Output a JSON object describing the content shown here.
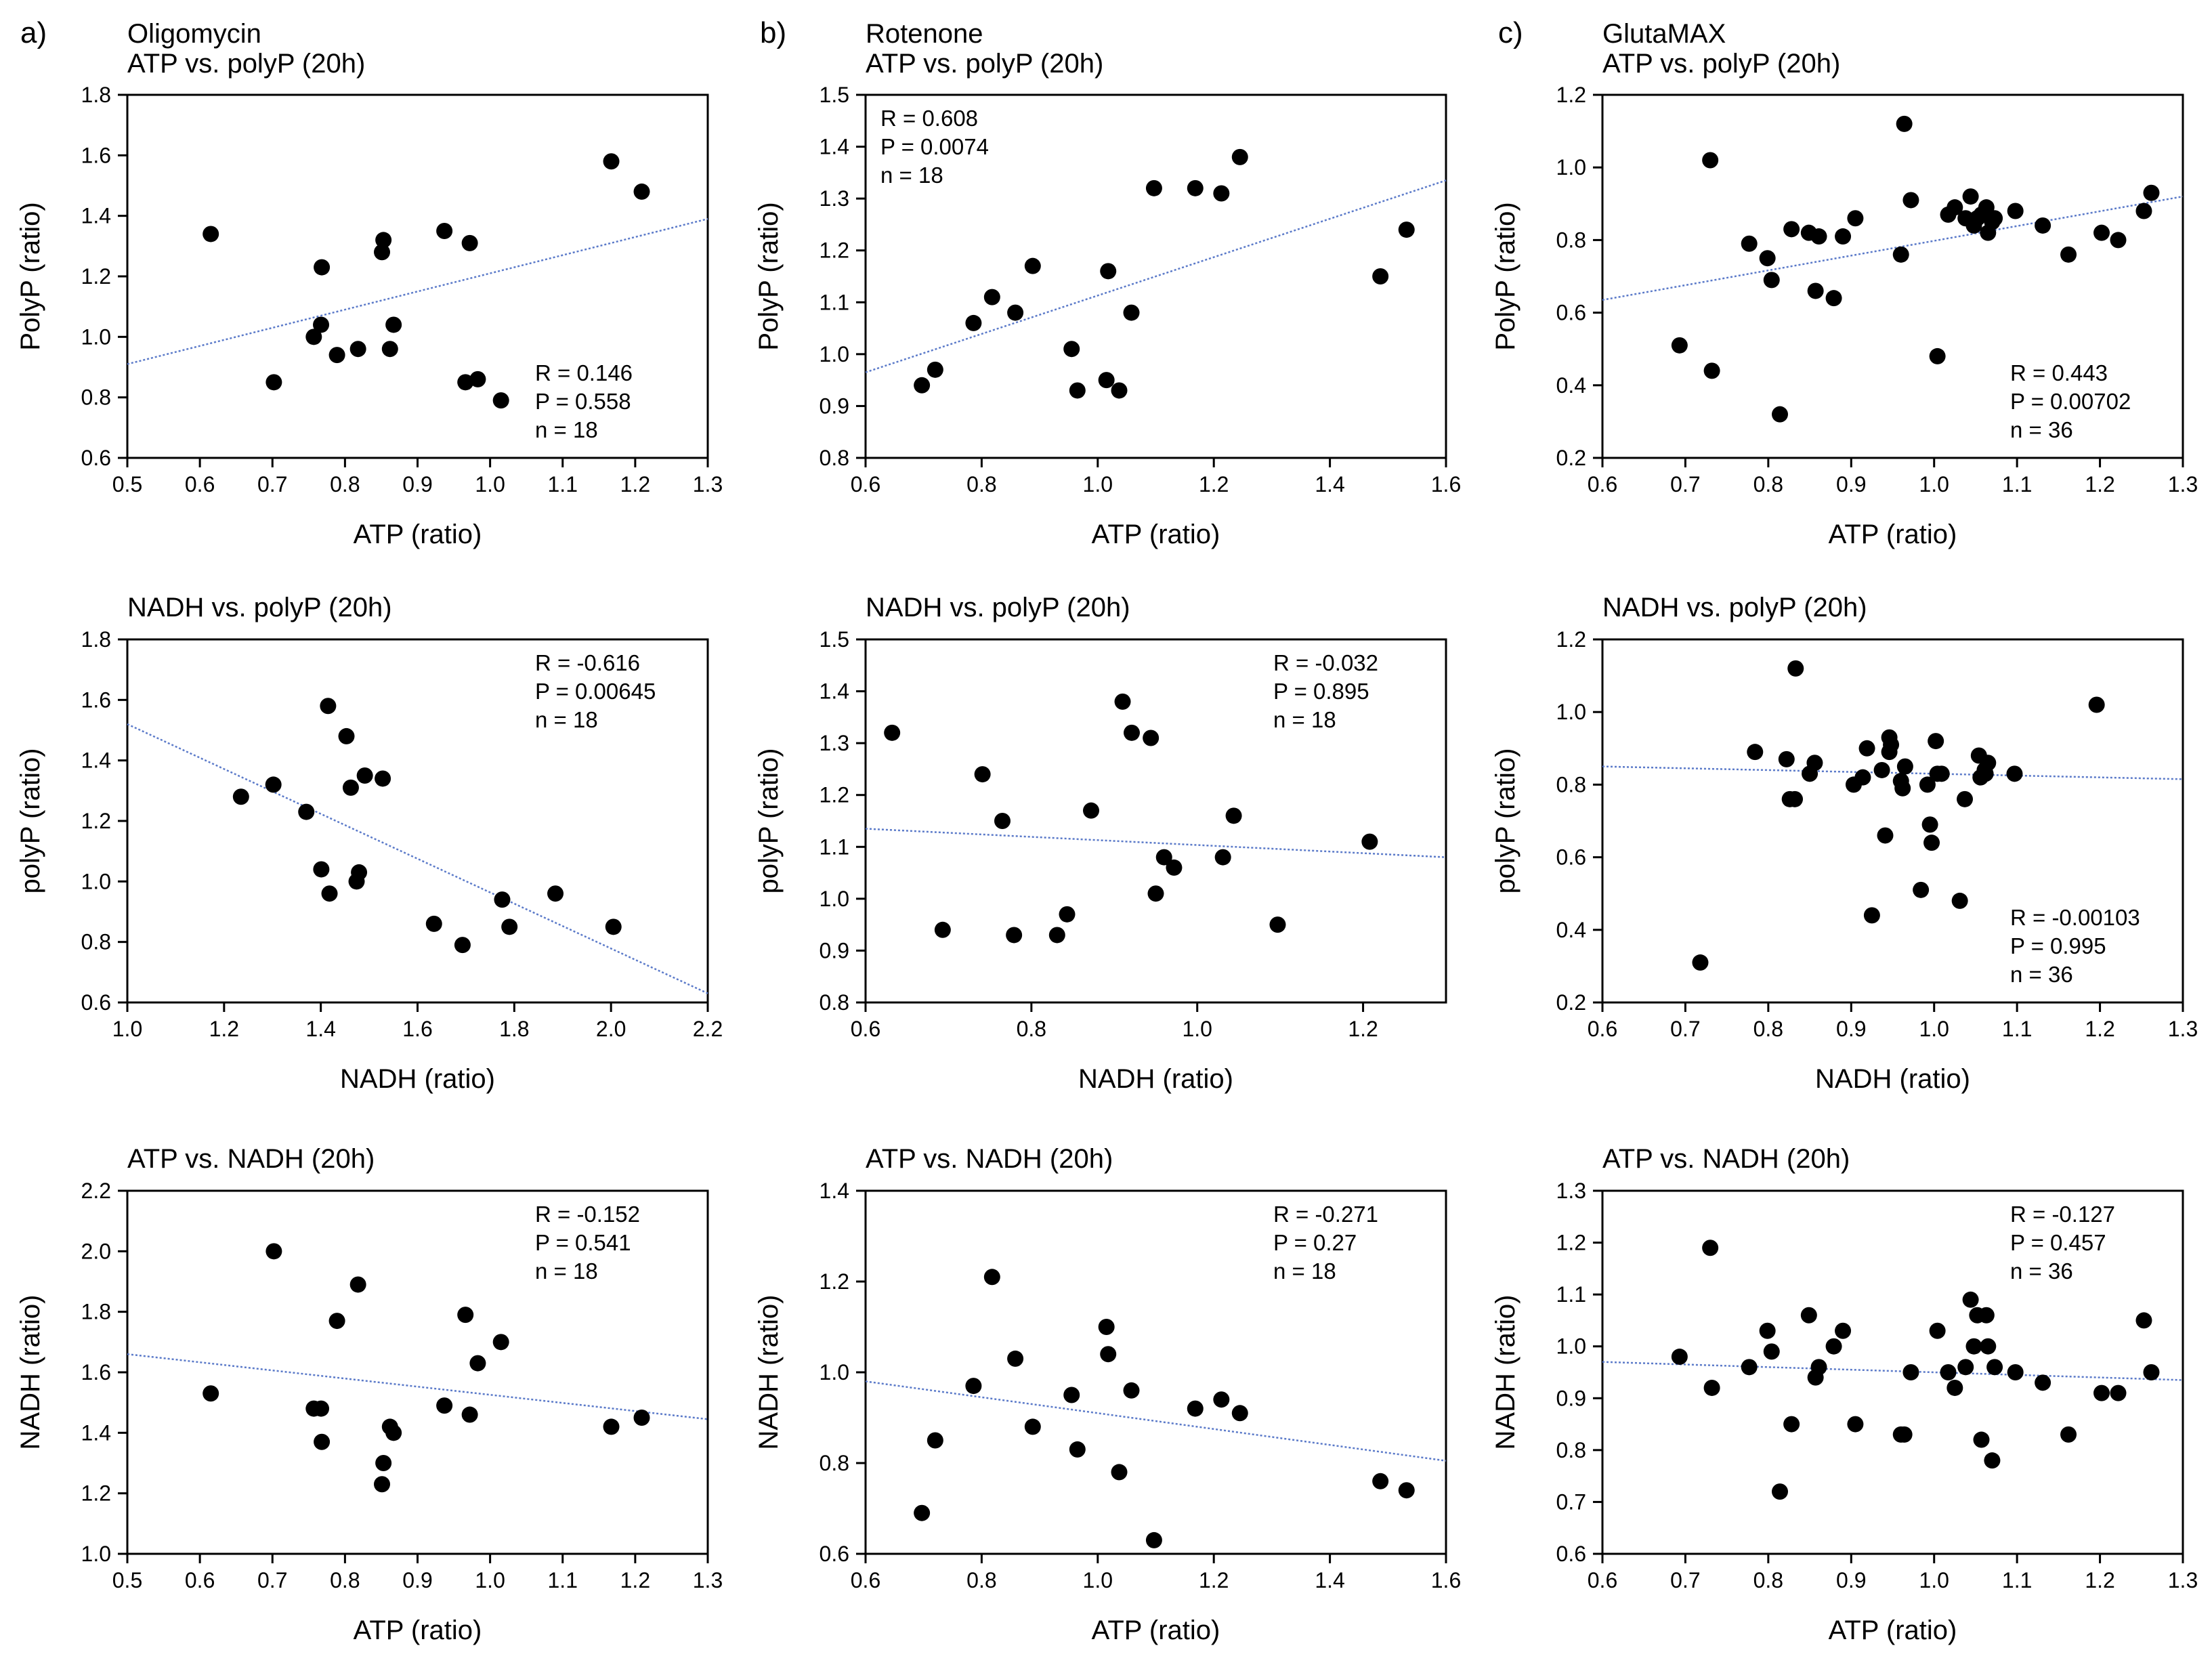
{
  "figure": {
    "column_letters": [
      "a)",
      "b)",
      "c)"
    ],
    "column_titles": [
      "Oligomycin",
      "Rotenone",
      "GlutaMAX"
    ]
  },
  "colors": {
    "points": "#000000",
    "regression": "#5b7ac9",
    "axes": "#000000"
  },
  "chart_data": [
    {
      "id": "a1",
      "type": "scatter",
      "title": "ATP vs. polyP (20h)",
      "xlabel": "ATP (ratio)",
      "ylabel": "PolyP (ratio)",
      "xlim": [
        0.5,
        1.3
      ],
      "ylim": [
        0.6,
        1.8
      ],
      "xticks": [
        0.5,
        0.6,
        0.7,
        0.8,
        0.9,
        1.0,
        1.1,
        1.2,
        1.3
      ],
      "yticks": [
        0.6,
        0.8,
        1.0,
        1.2,
        1.4,
        1.6,
        1.8
      ],
      "stats": [
        "R = 0.146",
        "P = 0.558",
        "n = 18"
      ],
      "stats_position": "bottom-right",
      "regression": [
        [
          0.5,
          0.91
        ],
        [
          1.3,
          1.39
        ]
      ],
      "x": [
        0.615,
        0.702,
        0.757,
        0.767,
        0.768,
        0.789,
        0.818,
        0.851,
        0.853,
        0.862,
        0.867,
        0.937,
        0.966,
        0.972,
        0.983,
        1.015,
        1.167,
        1.209
      ],
      "y": [
        1.34,
        0.85,
        1.0,
        1.04,
        1.23,
        0.94,
        0.96,
        1.28,
        1.32,
        0.96,
        1.04,
        1.35,
        0.85,
        1.31,
        0.86,
        0.79,
        1.58,
        1.48
      ]
    },
    {
      "id": "b1",
      "type": "scatter",
      "title": "ATP vs. polyP (20h)",
      "xlabel": "ATP (ratio)",
      "ylabel": "PolyP (ratio)",
      "xlim": [
        0.6,
        1.6
      ],
      "ylim": [
        0.8,
        1.5
      ],
      "xticks": [
        0.6,
        0.8,
        1.0,
        1.2,
        1.4,
        1.6
      ],
      "yticks": [
        0.8,
        0.9,
        1.0,
        1.1,
        1.2,
        1.3,
        1.4,
        1.5
      ],
      "stats": [
        "R = 0.608",
        "P = 0.0074",
        "n = 18"
      ],
      "stats_position": "top-left",
      "regression": [
        [
          0.6,
          0.965
        ],
        [
          1.6,
          1.335
        ]
      ],
      "x": [
        0.697,
        0.72,
        0.786,
        0.818,
        0.858,
        0.888,
        0.955,
        0.965,
        1.015,
        1.018,
        1.037,
        1.058,
        1.097,
        1.168,
        1.213,
        1.245,
        1.487,
        1.532
      ],
      "y": [
        0.94,
        0.97,
        1.06,
        1.11,
        1.08,
        1.17,
        1.01,
        0.93,
        0.95,
        1.16,
        0.93,
        1.08,
        1.32,
        1.32,
        1.31,
        1.38,
        1.15,
        1.24
      ]
    },
    {
      "id": "c1",
      "type": "scatter",
      "title": "ATP vs. polyP (20h)",
      "xlabel": "ATP (ratio)",
      "ylabel": "PolyP (ratio)",
      "xlim": [
        0.6,
        1.3
      ],
      "ylim": [
        0.2,
        1.2
      ],
      "xticks": [
        0.6,
        0.7,
        0.8,
        0.9,
        1.0,
        1.1,
        1.2,
        1.3
      ],
      "yticks": [
        0.2,
        0.4,
        0.6,
        0.8,
        1.0,
        1.2
      ],
      "stats": [
        "R = 0.443",
        "P = 0.00702",
        "n = 36"
      ],
      "stats_position": "bottom-right",
      "regression": [
        [
          0.6,
          0.635
        ],
        [
          1.3,
          0.92
        ]
      ],
      "x": [
        0.693,
        0.73,
        0.732,
        0.777,
        0.799,
        0.804,
        0.814,
        0.828,
        0.849,
        0.857,
        0.861,
        0.879,
        0.89,
        0.905,
        0.96,
        0.964,
        0.972,
        1.004,
        1.017,
        1.025,
        1.038,
        1.044,
        1.048,
        1.052,
        1.057,
        1.063,
        1.065,
        1.07,
        1.073,
        1.098,
        1.131,
        1.162,
        1.202,
        1.222,
        1.253,
        1.262
      ],
      "y": [
        0.51,
        1.02,
        0.44,
        0.79,
        0.75,
        0.69,
        0.32,
        0.83,
        0.82,
        0.66,
        0.81,
        0.64,
        0.81,
        0.86,
        0.76,
        1.12,
        0.91,
        0.48,
        0.87,
        0.89,
        0.86,
        0.92,
        0.84,
        0.86,
        0.87,
        0.89,
        0.82,
        0.85,
        0.86,
        0.88,
        0.84,
        0.76,
        0.82,
        0.8,
        0.88,
        0.93
      ]
    },
    {
      "id": "a2",
      "type": "scatter",
      "title": "NADH vs. polyP (20h)",
      "xlabel": "NADH (ratio)",
      "ylabel": "polyP (ratio)",
      "xlim": [
        1.0,
        2.2
      ],
      "ylim": [
        0.6,
        1.8
      ],
      "xticks": [
        1.0,
        1.2,
        1.4,
        1.6,
        1.8,
        2.0,
        2.2
      ],
      "yticks": [
        0.6,
        0.8,
        1.0,
        1.2,
        1.4,
        1.6,
        1.8
      ],
      "stats": [
        "R = -0.616",
        "P = 0.00645",
        "n = 18"
      ],
      "stats_position": "top-right",
      "regression": [
        [
          1.0,
          1.52
        ],
        [
          2.2,
          0.63
        ]
      ],
      "x": [
        1.235,
        1.302,
        1.37,
        1.401,
        1.415,
        1.418,
        1.453,
        1.462,
        1.474,
        1.479,
        1.491,
        1.528,
        1.634,
        1.693,
        1.775,
        1.79,
        1.885,
        2.005
      ],
      "y": [
        1.28,
        1.32,
        1.23,
        1.04,
        1.58,
        0.96,
        1.48,
        1.31,
        1.0,
        1.03,
        1.35,
        1.34,
        0.86,
        0.79,
        0.94,
        0.85,
        0.96,
        0.85
      ]
    },
    {
      "id": "b2",
      "type": "scatter",
      "title": "NADH vs. polyP (20h)",
      "xlabel": "NADH (ratio)",
      "ylabel": "polyP (ratio)",
      "xlim": [
        0.6,
        1.3
      ],
      "ylim": [
        0.8,
        1.5
      ],
      "xticks": [
        0.6,
        0.8,
        1.0,
        1.2
      ],
      "yticks": [
        0.8,
        0.9,
        1.0,
        1.1,
        1.2,
        1.3,
        1.4,
        1.5
      ],
      "stats": [
        "R = -0.032",
        "P = 0.895",
        "n = 18"
      ],
      "stats_position": "top-right",
      "regression": [
        [
          0.6,
          1.135
        ],
        [
          1.3,
          1.08
        ]
      ],
      "x": [
        0.632,
        0.693,
        0.741,
        0.765,
        0.779,
        0.831,
        0.843,
        0.872,
        0.91,
        0.921,
        0.944,
        0.95,
        0.96,
        0.972,
        1.031,
        1.044,
        1.097,
        1.208
      ],
      "y": [
        1.32,
        0.94,
        1.24,
        1.15,
        0.93,
        0.93,
        0.97,
        1.17,
        1.38,
        1.32,
        1.31,
        1.01,
        1.08,
        1.06,
        1.08,
        1.16,
        0.95,
        1.11
      ]
    },
    {
      "id": "c2",
      "type": "scatter",
      "title": "NADH vs. polyP (20h)",
      "xlabel": "NADH (ratio)",
      "ylabel": "polyP (ratio)",
      "xlim": [
        0.6,
        1.3
      ],
      "ylim": [
        0.2,
        1.2
      ],
      "xticks": [
        0.6,
        0.7,
        0.8,
        0.9,
        1.0,
        1.1,
        1.2,
        1.3
      ],
      "yticks": [
        0.2,
        0.4,
        0.6,
        0.8,
        1.0,
        1.2
      ],
      "stats": [
        "R = -0.00103",
        "P = 0.995",
        "n = 36"
      ],
      "stats_position": "bottom-right",
      "regression": [
        [
          0.6,
          0.85
        ],
        [
          1.3,
          0.815
        ]
      ],
      "x": [
        0.718,
        0.784,
        0.822,
        0.826,
        0.832,
        0.833,
        0.85,
        0.856,
        0.903,
        0.914,
        0.919,
        0.925,
        0.937,
        0.941,
        0.946,
        0.946,
        0.948,
        0.96,
        0.962,
        0.965,
        0.984,
        0.995,
        0.997,
        1.002,
        1.004,
        1.009,
        1.031,
        1.037,
        1.054,
        1.056,
        1.061,
        1.062,
        1.065,
        1.097,
        1.196,
        0.992
      ],
      "y": [
        0.31,
        0.89,
        0.87,
        0.76,
        0.76,
        1.12,
        0.83,
        0.86,
        0.8,
        0.82,
        0.9,
        0.44,
        0.84,
        0.66,
        0.89,
        0.93,
        0.91,
        0.81,
        0.79,
        0.85,
        0.51,
        0.69,
        0.64,
        0.92,
        0.83,
        0.83,
        0.48,
        0.76,
        0.88,
        0.82,
        0.84,
        0.83,
        0.86,
        0.83,
        1.02,
        0.8
      ]
    },
    {
      "id": "a3",
      "type": "scatter",
      "title": "ATP vs. NADH (20h)",
      "xlabel": "ATP (ratio)",
      "ylabel": "NADH (ratio)",
      "xlim": [
        0.5,
        1.3
      ],
      "ylim": [
        1.0,
        2.2
      ],
      "xticks": [
        0.5,
        0.6,
        0.7,
        0.8,
        0.9,
        1.0,
        1.1,
        1.2,
        1.3
      ],
      "yticks": [
        1.0,
        1.2,
        1.4,
        1.6,
        1.8,
        2.0,
        2.2
      ],
      "stats": [
        "R = -0.152",
        "P = 0.541",
        "n = 18"
      ],
      "stats_position": "top-right",
      "regression": [
        [
          0.5,
          1.66
        ],
        [
          1.3,
          1.445
        ]
      ],
      "x": [
        0.615,
        0.702,
        0.757,
        0.767,
        0.768,
        0.789,
        0.818,
        0.851,
        0.853,
        0.862,
        0.867,
        0.937,
        0.966,
        0.972,
        0.983,
        1.015,
        1.167,
        1.209
      ],
      "y": [
        1.53,
        2.0,
        1.48,
        1.48,
        1.37,
        1.77,
        1.89,
        1.23,
        1.3,
        1.42,
        1.4,
        1.49,
        1.79,
        1.46,
        1.63,
        1.7,
        1.42,
        1.45
      ]
    },
    {
      "id": "b3",
      "type": "scatter",
      "title": "ATP vs. NADH (20h)",
      "xlabel": "ATP (ratio)",
      "ylabel": "NADH (ratio)",
      "xlim": [
        0.6,
        1.6
      ],
      "ylim": [
        0.6,
        1.4
      ],
      "xticks": [
        0.6,
        0.8,
        1.0,
        1.2,
        1.4,
        1.6
      ],
      "yticks": [
        0.6,
        0.8,
        1.0,
        1.2,
        1.4
      ],
      "stats": [
        "R = -0.271",
        "P = 0.27",
        "n = 18"
      ],
      "stats_position": "top-right",
      "regression": [
        [
          0.6,
          0.98
        ],
        [
          1.6,
          0.805
        ]
      ],
      "x": [
        0.697,
        0.72,
        0.786,
        0.818,
        0.858,
        0.888,
        0.955,
        0.965,
        1.015,
        1.018,
        1.037,
        1.058,
        1.097,
        1.168,
        1.213,
        1.245,
        1.487,
        1.532
      ],
      "y": [
        0.69,
        0.85,
        0.97,
        1.21,
        1.03,
        0.88,
        0.95,
        0.83,
        1.1,
        1.04,
        0.78,
        0.96,
        0.63,
        0.92,
        0.94,
        0.91,
        0.76,
        0.74
      ]
    },
    {
      "id": "c3",
      "type": "scatter",
      "title": "ATP vs. NADH (20h)",
      "xlabel": "ATP (ratio)",
      "ylabel": "NADH (ratio)",
      "xlim": [
        0.6,
        1.3
      ],
      "ylim": [
        0.6,
        1.3
      ],
      "xticks": [
        0.6,
        0.7,
        0.8,
        0.9,
        1.0,
        1.1,
        1.2,
        1.3
      ],
      "yticks": [
        0.6,
        0.7,
        0.8,
        0.9,
        1.0,
        1.1,
        1.2,
        1.3
      ],
      "stats": [
        "R = -0.127",
        "P = 0.457",
        "n = 36"
      ],
      "stats_position": "top-right",
      "regression": [
        [
          0.6,
          0.97
        ],
        [
          1.3,
          0.935
        ]
      ],
      "x": [
        0.693,
        0.73,
        0.732,
        0.777,
        0.799,
        0.804,
        0.814,
        0.828,
        0.849,
        0.857,
        0.861,
        0.879,
        0.89,
        0.905,
        0.96,
        0.964,
        0.972,
        1.004,
        1.017,
        1.025,
        1.038,
        1.044,
        1.048,
        1.052,
        1.057,
        1.063,
        1.065,
        1.07,
        1.073,
        1.098,
        1.131,
        1.162,
        1.202,
        1.222,
        1.253,
        1.262
      ],
      "y": [
        0.98,
        1.19,
        0.92,
        0.96,
        1.03,
        0.99,
        0.72,
        0.85,
        1.06,
        0.94,
        0.96,
        1.0,
        1.03,
        0.85,
        0.83,
        0.83,
        0.95,
        1.03,
        0.95,
        0.92,
        0.96,
        1.09,
        1.0,
        1.06,
        0.82,
        1.06,
        1.0,
        0.78,
        0.96,
        0.95,
        0.93,
        0.83,
        0.91,
        0.91,
        1.05,
        0.95
      ]
    }
  ]
}
